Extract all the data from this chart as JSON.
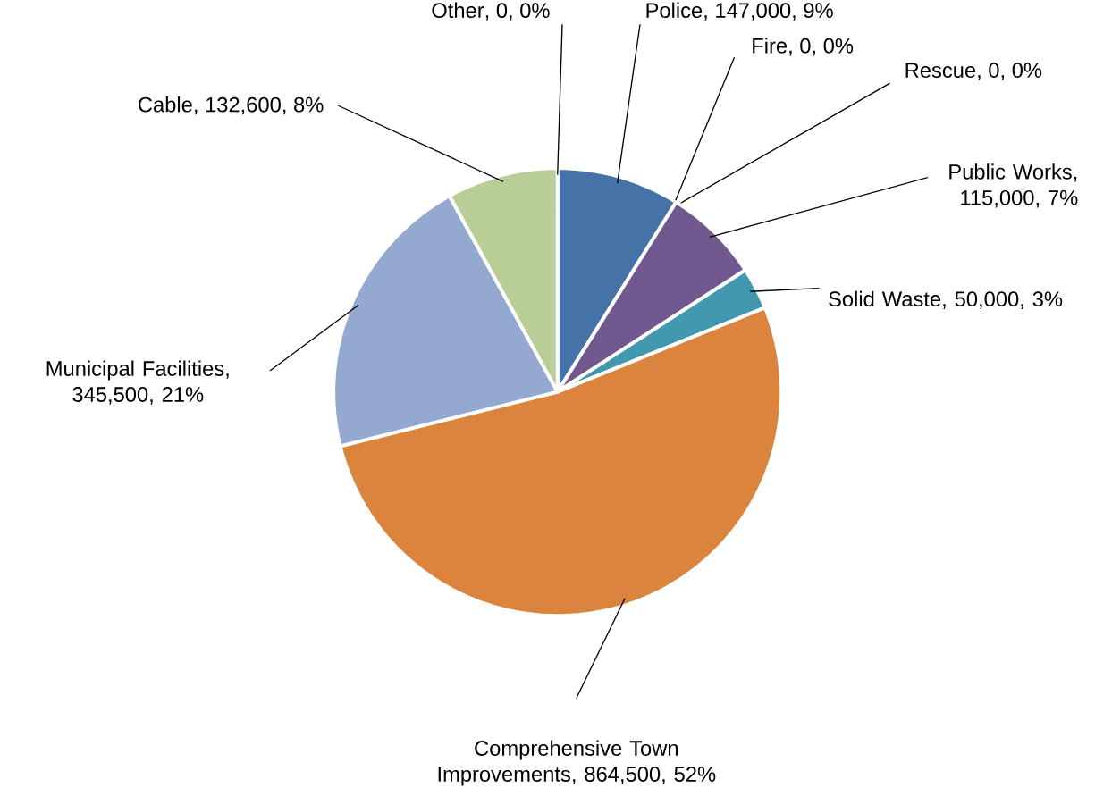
{
  "chart_data": {
    "type": "pie",
    "categories": [
      "Police",
      "Fire",
      "Rescue",
      "Public Works",
      "Solid Waste",
      "Comprehensive Town Improvements",
      "Municipal Facilities",
      "Cable",
      "Other"
    ],
    "values": [
      147000,
      0,
      0,
      115000,
      50000,
      864500,
      345500,
      132600,
      0
    ],
    "value_labels": [
      ", 147,000, 9%",
      ", 0, 0%",
      ", 0, 0%",
      ", 115,000, 7%",
      ", 50,000, 3%",
      ", 864,500, 52%",
      ", 345,500, 21%",
      ", 132,600, 8%",
      ", 0, 0%"
    ],
    "colors": [
      "#4572a7",
      "#aa4643",
      "#89a54e",
      "#71588f",
      "#4198af",
      "#db843d",
      "#93a9cf",
      "#b9cd96",
      "#a99bbd"
    ]
  }
}
